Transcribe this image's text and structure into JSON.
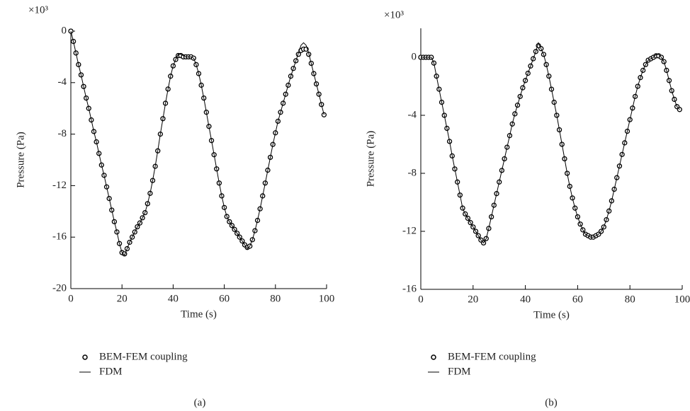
{
  "chart_data": [
    {
      "type": "line",
      "caption": "(a)",
      "y_scale_label": "×10³",
      "xlabel": "Time (s)",
      "ylabel": "Pressure (Pa)",
      "xlim": [
        0,
        100
      ],
      "xticks": [
        0,
        20,
        40,
        60,
        80,
        100
      ],
      "ylim": [
        -20,
        0
      ],
      "yticks": [
        -20,
        -16,
        -12,
        -8,
        -4,
        0
      ],
      "x": [
        0,
        1,
        2,
        3,
        4,
        5,
        6,
        7,
        8,
        9,
        10,
        11,
        12,
        13,
        14,
        15,
        16,
        17,
        18,
        19,
        20,
        21,
        22,
        23,
        24,
        25,
        26,
        27,
        28,
        29,
        30,
        31,
        32,
        33,
        34,
        35,
        36,
        37,
        38,
        39,
        40,
        41,
        42,
        43,
        44,
        45,
        46,
        47,
        48,
        49,
        50,
        51,
        52,
        53,
        54,
        55,
        56,
        57,
        58,
        59,
        60,
        61,
        62,
        63,
        64,
        65,
        66,
        67,
        68,
        69,
        70,
        71,
        72,
        73,
        74,
        75,
        76,
        77,
        78,
        79,
        80,
        81,
        82,
        83,
        84,
        85,
        86,
        87,
        88,
        89,
        90,
        91,
        92,
        93,
        94,
        95,
        96,
        97,
        98,
        99
      ],
      "series": [
        {
          "name": "BEM-FEM coupling",
          "mode": "markers",
          "color": "#000000",
          "values": [
            0,
            -0.8,
            -1.7,
            -2.6,
            -3.4,
            -4.3,
            -5.2,
            -6.0,
            -6.9,
            -7.8,
            -8.6,
            -9.5,
            -10.4,
            -11.2,
            -12.1,
            -13.0,
            -13.9,
            -14.8,
            -15.6,
            -16.5,
            -17.2,
            -17.3,
            -16.9,
            -16.4,
            -16.0,
            -15.6,
            -15.2,
            -14.9,
            -14.5,
            -14.1,
            -13.4,
            -12.6,
            -11.6,
            -10.5,
            -9.3,
            -8.0,
            -6.8,
            -5.6,
            -4.5,
            -3.5,
            -2.7,
            -2.2,
            -1.9,
            -1.9,
            -2.0,
            -2.0,
            -2.0,
            -2.0,
            -2.1,
            -2.6,
            -3.3,
            -4.2,
            -5.2,
            -6.3,
            -7.4,
            -8.5,
            -9.6,
            -10.7,
            -11.8,
            -12.8,
            -13.7,
            -14.4,
            -14.8,
            -15.1,
            -15.4,
            -15.7,
            -16.0,
            -16.3,
            -16.6,
            -16.8,
            -16.7,
            -16.2,
            -15.5,
            -14.7,
            -13.8,
            -12.8,
            -11.8,
            -10.8,
            -9.8,
            -8.8,
            -7.9,
            -7.0,
            -6.3,
            -5.6,
            -4.9,
            -4.2,
            -3.5,
            -2.9,
            -2.3,
            -1.8,
            -1.5,
            -1.4,
            -1.4,
            -1.8,
            -2.5,
            -3.3,
            -4.1,
            -4.9,
            -5.7,
            -6.5
          ]
        },
        {
          "name": "FDM",
          "mode": "lines",
          "color": "#000000",
          "values": [
            0,
            -0.8,
            -1.7,
            -2.6,
            -3.4,
            -4.3,
            -5.2,
            -6.0,
            -6.9,
            -7.8,
            -8.6,
            -9.5,
            -10.4,
            -11.2,
            -12.1,
            -13.0,
            -13.9,
            -14.8,
            -15.6,
            -16.5,
            -17.2,
            -17.4,
            -16.9,
            -16.4,
            -16.0,
            -15.6,
            -15.2,
            -14.9,
            -14.5,
            -14.1,
            -13.4,
            -12.6,
            -11.6,
            -10.5,
            -9.3,
            -8.0,
            -6.8,
            -5.6,
            -4.5,
            -3.5,
            -2.7,
            -2.2,
            -1.8,
            -1.8,
            -1.9,
            -2.0,
            -2.0,
            -2.0,
            -2.1,
            -2.6,
            -3.3,
            -4.2,
            -5.2,
            -6.3,
            -7.4,
            -8.5,
            -9.6,
            -10.7,
            -11.8,
            -12.8,
            -13.7,
            -14.4,
            -14.8,
            -15.1,
            -15.4,
            -15.7,
            -16.0,
            -16.3,
            -16.6,
            -16.9,
            -16.7,
            -16.2,
            -15.5,
            -14.7,
            -13.8,
            -12.8,
            -11.8,
            -10.8,
            -9.8,
            -8.8,
            -7.9,
            -7.0,
            -6.3,
            -5.6,
            -4.9,
            -4.2,
            -3.5,
            -2.9,
            -2.3,
            -1.7,
            -1.1,
            -0.9,
            -1.1,
            -1.7,
            -2.5,
            -3.3,
            -4.1,
            -4.9,
            -5.7,
            -6.5
          ]
        }
      ]
    },
    {
      "type": "line",
      "caption": "(b)",
      "y_scale_label": "×10³",
      "xlabel": "Time (s)",
      "ylabel": "Pressure (Pa)",
      "xlim": [
        0,
        100
      ],
      "xticks": [
        0,
        20,
        40,
        60,
        80,
        100
      ],
      "ylim": [
        -16,
        2
      ],
      "yticks": [
        -16,
        -12,
        -8,
        -4,
        0
      ],
      "x": [
        0,
        1,
        2,
        3,
        4,
        5,
        6,
        7,
        8,
        9,
        10,
        11,
        12,
        13,
        14,
        15,
        16,
        17,
        18,
        19,
        20,
        21,
        22,
        23,
        24,
        25,
        26,
        27,
        28,
        29,
        30,
        31,
        32,
        33,
        34,
        35,
        36,
        37,
        38,
        39,
        40,
        41,
        42,
        43,
        44,
        45,
        46,
        47,
        48,
        49,
        50,
        51,
        52,
        53,
        54,
        55,
        56,
        57,
        58,
        59,
        60,
        61,
        62,
        63,
        64,
        65,
        66,
        67,
        68,
        69,
        70,
        71,
        72,
        73,
        74,
        75,
        76,
        77,
        78,
        79,
        80,
        81,
        82,
        83,
        84,
        85,
        86,
        87,
        88,
        89,
        90,
        91,
        92,
        93,
        94,
        95,
        96,
        97,
        98,
        99
      ],
      "series": [
        {
          "name": "BEM-FEM coupling",
          "mode": "markers",
          "color": "#000000",
          "values": [
            0,
            0,
            0,
            0,
            0,
            -0.4,
            -1.3,
            -2.2,
            -3.1,
            -4.0,
            -4.9,
            -5.8,
            -6.8,
            -7.7,
            -8.6,
            -9.5,
            -10.4,
            -10.8,
            -11.1,
            -11.4,
            -11.7,
            -12.0,
            -12.3,
            -12.6,
            -12.8,
            -12.5,
            -11.8,
            -11.0,
            -10.2,
            -9.4,
            -8.6,
            -7.8,
            -7.0,
            -6.2,
            -5.4,
            -4.6,
            -3.9,
            -3.3,
            -2.7,
            -2.1,
            -1.6,
            -1.1,
            -0.6,
            -0.1,
            0.4,
            0.8,
            0.6,
            0.2,
            -0.5,
            -1.3,
            -2.2,
            -3.1,
            -4.0,
            -5.0,
            -6.0,
            -7.0,
            -8.0,
            -8.9,
            -9.7,
            -10.4,
            -11.0,
            -11.5,
            -11.9,
            -12.2,
            -12.3,
            -12.4,
            -12.4,
            -12.3,
            -12.2,
            -12.0,
            -11.7,
            -11.2,
            -10.6,
            -9.9,
            -9.1,
            -8.3,
            -7.5,
            -6.7,
            -5.9,
            -5.1,
            -4.3,
            -3.5,
            -2.7,
            -2.0,
            -1.4,
            -0.9,
            -0.5,
            -0.2,
            -0.1,
            0,
            0.1,
            0.1,
            0,
            -0.3,
            -0.9,
            -1.6,
            -2.3,
            -2.9,
            -3.4,
            -3.6
          ]
        },
        {
          "name": "FDM",
          "mode": "lines",
          "color": "#000000",
          "values": [
            0,
            0,
            0,
            0,
            0,
            -0.4,
            -1.3,
            -2.2,
            -3.1,
            -4.0,
            -4.9,
            -5.8,
            -6.8,
            -7.7,
            -8.6,
            -9.5,
            -10.4,
            -10.8,
            -11.1,
            -11.4,
            -11.7,
            -12.0,
            -12.3,
            -12.6,
            -12.8,
            -12.5,
            -11.8,
            -11.0,
            -10.2,
            -9.4,
            -8.6,
            -7.8,
            -7.0,
            -6.2,
            -5.4,
            -4.6,
            -3.9,
            -3.3,
            -2.7,
            -2.1,
            -1.6,
            -1.1,
            -0.6,
            -0.1,
            0.4,
            1.0,
            0.6,
            0.2,
            -0.5,
            -1.3,
            -2.2,
            -3.1,
            -4.0,
            -5.0,
            -6.0,
            -7.0,
            -8.0,
            -8.9,
            -9.7,
            -10.4,
            -11.0,
            -11.5,
            -11.9,
            -12.2,
            -12.3,
            -12.4,
            -12.4,
            -12.3,
            -12.2,
            -12.0,
            -11.7,
            -11.2,
            -10.6,
            -9.9,
            -9.1,
            -8.3,
            -7.5,
            -6.7,
            -5.9,
            -5.1,
            -4.3,
            -3.5,
            -2.7,
            -2.0,
            -1.4,
            -0.9,
            -0.5,
            -0.2,
            -0.1,
            0,
            0.2,
            0.2,
            0,
            -0.3,
            -0.9,
            -1.6,
            -2.3,
            -2.9,
            -3.4,
            -3.6
          ]
        }
      ]
    }
  ]
}
